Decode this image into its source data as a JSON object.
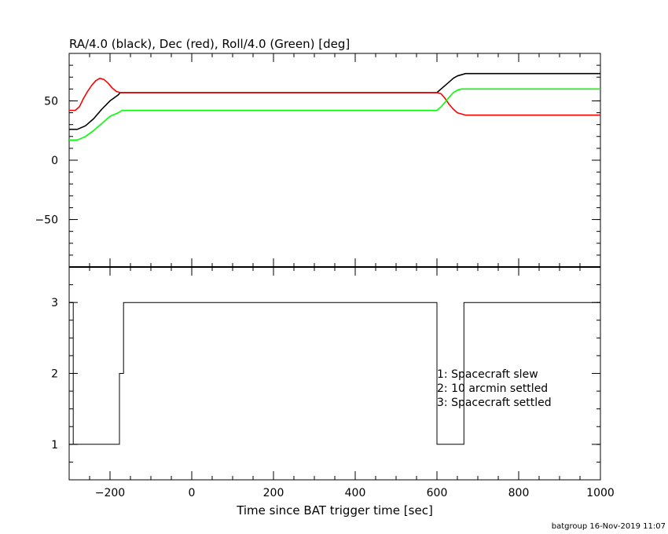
{
  "chart_data": [
    {
      "type": "line",
      "title": "RA/4.0 (black), Dec (red), Roll/4.0 (Green) [deg]",
      "xlim": [
        -300,
        1000
      ],
      "ylim": [
        -90,
        90
      ],
      "y_ticks": [
        -50,
        0,
        50
      ],
      "y_tick_labels": [
        "−50",
        "0",
        "50"
      ],
      "grid": false,
      "series": [
        {
          "color": "#000000",
          "x": [
            -300,
            -280,
            -260,
            -240,
            -220,
            -200,
            -180,
            -175,
            600,
            610,
            620,
            630,
            640,
            650,
            660,
            670,
            1000
          ],
          "y": [
            26,
            26,
            29,
            35,
            43,
            50,
            55,
            57,
            57,
            60,
            63,
            66,
            69,
            71,
            72,
            73,
            73
          ]
        },
        {
          "color": "#ff0000",
          "x": [
            -300,
            -285,
            -275,
            -265,
            -255,
            -245,
            -235,
            -225,
            -215,
            -205,
            -195,
            -185,
            -175,
            600,
            610,
            620,
            630,
            640,
            650,
            660,
            670,
            1000
          ],
          "y": [
            42,
            42,
            45,
            52,
            58,
            63,
            67,
            69,
            68,
            65,
            61,
            58,
            57,
            57,
            56,
            52,
            47,
            43,
            40,
            39,
            38,
            38
          ]
        },
        {
          "color": "#00ff00",
          "x": [
            -300,
            -280,
            -260,
            -240,
            -220,
            -200,
            -180,
            -170,
            600,
            610,
            620,
            630,
            640,
            650,
            660,
            670,
            1000
          ],
          "y": [
            17,
            17,
            20,
            25,
            31,
            37,
            40,
            42,
            42,
            45,
            49,
            53,
            57,
            59,
            60,
            60,
            60
          ]
        }
      ]
    },
    {
      "type": "line",
      "xlim": [
        -300,
        1000
      ],
      "ylim": [
        0.5,
        3.5
      ],
      "y_ticks": [
        1,
        2,
        3
      ],
      "y_tick_labels": [
        "1",
        "2",
        "3"
      ],
      "x_ticks": [
        -200,
        0,
        200,
        400,
        600,
        800,
        1000
      ],
      "x_tick_labels": [
        "−200",
        "0",
        "200",
        "400",
        "600",
        "800",
        "1000"
      ],
      "xlabel": "Time since BAT trigger time [sec]",
      "grid": false,
      "series": [
        {
          "color": "#000000",
          "step": true,
          "x": [
            -300,
            -290,
            -290,
            -177,
            -177,
            -167,
            -167,
            600,
            600,
            666,
            666,
            1000
          ],
          "y": [
            3,
            3,
            1,
            1,
            2,
            2,
            3,
            3,
            1,
            1,
            3,
            3
          ]
        }
      ],
      "annotations": [
        "1: Spacecraft slew",
        "2: 10 arcmin settled",
        "3: Spacecraft settled"
      ]
    }
  ],
  "footer": "batgroup 16-Nov-2019 11:07"
}
